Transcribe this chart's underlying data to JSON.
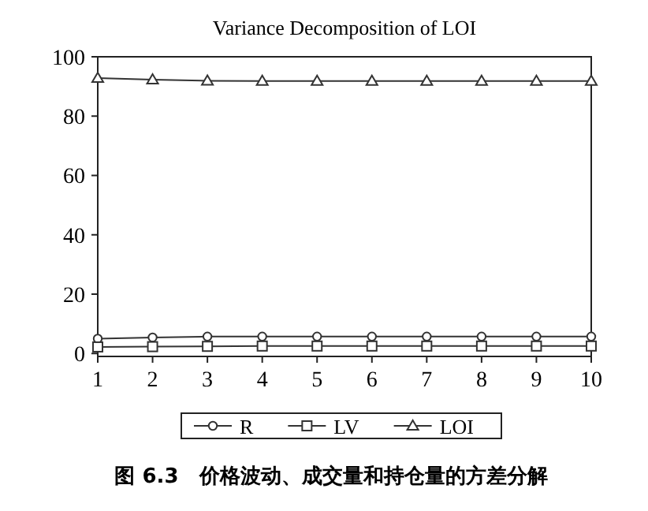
{
  "chart_data": {
    "type": "line",
    "title": "Variance Decomposition of LOI",
    "x": [
      1,
      2,
      3,
      4,
      5,
      6,
      7,
      8,
      9,
      10
    ],
    "series": [
      {
        "name": "R",
        "color": "#333333",
        "marker": "circle",
        "values": [
          5.0,
          5.4,
          5.7,
          5.7,
          5.7,
          5.7,
          5.7,
          5.7,
          5.7,
          5.7
        ]
      },
      {
        "name": "LV",
        "color": "#333333",
        "marker": "square",
        "values": [
          2.2,
          2.3,
          2.4,
          2.5,
          2.5,
          2.5,
          2.5,
          2.5,
          2.5,
          2.5
        ]
      },
      {
        "name": "LOI",
        "color": "#333333",
        "marker": "triangle",
        "values": [
          92.8,
          92.3,
          91.9,
          91.8,
          91.8,
          91.8,
          91.8,
          91.8,
          91.8,
          91.8
        ]
      }
    ],
    "xlim": [
      1,
      10
    ],
    "xticks": [
      1,
      2,
      3,
      4,
      5,
      6,
      7,
      8,
      9,
      10
    ],
    "ylim": [
      -1,
      100
    ],
    "yticks": [
      0,
      20,
      40,
      60,
      80,
      100
    ],
    "grid": false,
    "legend": "bottom",
    "line_style": "solid",
    "annotations": [
      "图 6.3　价格波动、成交量和持仓量的方差分解"
    ]
  }
}
